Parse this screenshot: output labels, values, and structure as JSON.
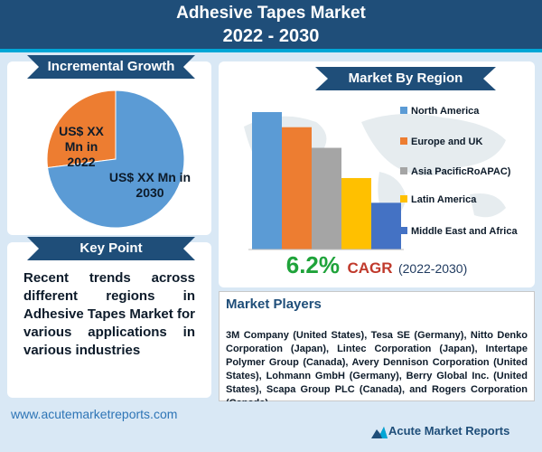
{
  "header": {
    "title_line1": "Adhesive Tapes Market",
    "title_line2": "2022 - 2030"
  },
  "incremental_growth": {
    "title": "Incremental Growth",
    "label_2022": "US$ XX Mn in 2022",
    "label_2030": "US$ XX Mn in 2030"
  },
  "key_point": {
    "title": "Key Point",
    "text": "Recent trends across different regions in Adhesive Tapes Market for various applications in various industries"
  },
  "region": {
    "title": "Market By Region"
  },
  "cagr": {
    "value": "6.2%",
    "label": "CAGR",
    "years": "(2022-2030)"
  },
  "players": {
    "title": "Market Players",
    "text": "3M Company (United States), Tesa SE (Germany), Nitto Denko Corporation (Japan), Lintec Corporation (Japan), Intertape Polymer Group (Canada), Avery Dennison Corporation (United States), Lohmann GmbH (Germany), Berry Global Inc. (United States), Scapa Group PLC (Canada), and Rogers Corporation (Canada)."
  },
  "footer": {
    "url": "www.acutemarketreports.com",
    "logo_text": "Acute Market Reports"
  },
  "chart_data": [
    {
      "type": "pie",
      "categories": [
        "2022",
        "2030"
      ],
      "values": [
        27,
        73
      ],
      "colors": [
        "#ed7d31",
        "#5b9bd5"
      ]
    },
    {
      "type": "bar",
      "categories": [
        "North America",
        "Europe and UK",
        "Asia PacificRoAPAC)",
        "Latin America",
        "Middle East and Africa"
      ],
      "values": [
        100,
        89,
        74,
        52,
        34
      ],
      "colors": [
        "#5b9bd5",
        "#ed7d31",
        "#a5a5a5",
        "#ffc000",
        "#4472c4"
      ],
      "ylim": [
        0,
        100
      ],
      "grid": false,
      "legend": "right"
    }
  ]
}
